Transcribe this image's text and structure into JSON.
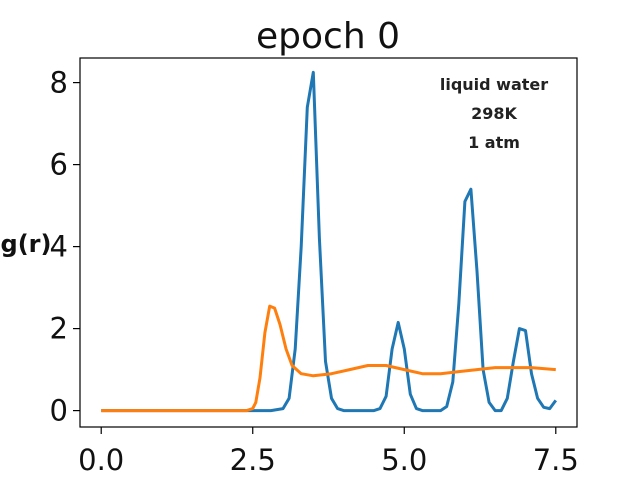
{
  "chart_data": {
    "type": "line",
    "title": "epoch 0",
    "ylabel": "g(r)",
    "xlabel": "",
    "xlim": [
      -0.35,
      7.85
    ],
    "ylim": [
      -0.4,
      8.6
    ],
    "xticks": [
      "0.0",
      "2.5",
      "5.0",
      "7.5"
    ],
    "yticks": [
      "0",
      "2",
      "4",
      "6",
      "8"
    ],
    "xtick_values": [
      0.0,
      2.5,
      5.0,
      7.5
    ],
    "ytick_values": [
      0,
      2,
      4,
      6,
      8
    ],
    "grid": false,
    "annotation": [
      "liquid water",
      "298K",
      "1 atm"
    ],
    "series": [
      {
        "color": "#1f77b4",
        "points": [
          [
            0.0,
            0.0
          ],
          [
            1.0,
            0.0
          ],
          [
            2.0,
            0.0
          ],
          [
            2.6,
            0.0
          ],
          [
            2.8,
            0.0
          ],
          [
            3.0,
            0.05
          ],
          [
            3.1,
            0.3
          ],
          [
            3.2,
            1.5
          ],
          [
            3.3,
            4.0
          ],
          [
            3.4,
            7.4
          ],
          [
            3.5,
            8.25
          ],
          [
            3.6,
            4.2
          ],
          [
            3.7,
            1.2
          ],
          [
            3.8,
            0.3
          ],
          [
            3.9,
            0.05
          ],
          [
            4.0,
            0.0
          ],
          [
            4.5,
            0.0
          ],
          [
            4.6,
            0.05
          ],
          [
            4.7,
            0.35
          ],
          [
            4.8,
            1.5
          ],
          [
            4.9,
            2.15
          ],
          [
            5.0,
            1.5
          ],
          [
            5.1,
            0.4
          ],
          [
            5.2,
            0.05
          ],
          [
            5.3,
            0.0
          ],
          [
            5.6,
            0.0
          ],
          [
            5.7,
            0.1
          ],
          [
            5.8,
            0.7
          ],
          [
            5.9,
            2.6
          ],
          [
            6.0,
            5.1
          ],
          [
            6.1,
            5.4
          ],
          [
            6.2,
            3.4
          ],
          [
            6.3,
            1.0
          ],
          [
            6.4,
            0.2
          ],
          [
            6.5,
            0.0
          ],
          [
            6.6,
            0.0
          ],
          [
            6.7,
            0.3
          ],
          [
            6.8,
            1.2
          ],
          [
            6.9,
            2.0
          ],
          [
            7.0,
            1.95
          ],
          [
            7.1,
            0.9
          ],
          [
            7.2,
            0.3
          ],
          [
            7.3,
            0.08
          ],
          [
            7.4,
            0.05
          ],
          [
            7.5,
            0.25
          ]
        ]
      },
      {
        "color": "#ff7f0e",
        "points": [
          [
            0.0,
            0.0
          ],
          [
            1.0,
            0.0
          ],
          [
            2.0,
            0.0
          ],
          [
            2.4,
            0.0
          ],
          [
            2.5,
            0.05
          ],
          [
            2.55,
            0.2
          ],
          [
            2.62,
            0.8
          ],
          [
            2.7,
            1.9
          ],
          [
            2.78,
            2.55
          ],
          [
            2.86,
            2.5
          ],
          [
            2.95,
            2.1
          ],
          [
            3.05,
            1.5
          ],
          [
            3.15,
            1.1
          ],
          [
            3.3,
            0.9
          ],
          [
            3.5,
            0.85
          ],
          [
            3.8,
            0.9
          ],
          [
            4.1,
            1.0
          ],
          [
            4.4,
            1.1
          ],
          [
            4.7,
            1.1
          ],
          [
            5.0,
            1.0
          ],
          [
            5.3,
            0.9
          ],
          [
            5.6,
            0.9
          ],
          [
            5.9,
            0.95
          ],
          [
            6.2,
            1.0
          ],
          [
            6.5,
            1.05
          ],
          [
            6.8,
            1.05
          ],
          [
            7.1,
            1.05
          ],
          [
            7.5,
            1.0
          ]
        ]
      }
    ]
  }
}
